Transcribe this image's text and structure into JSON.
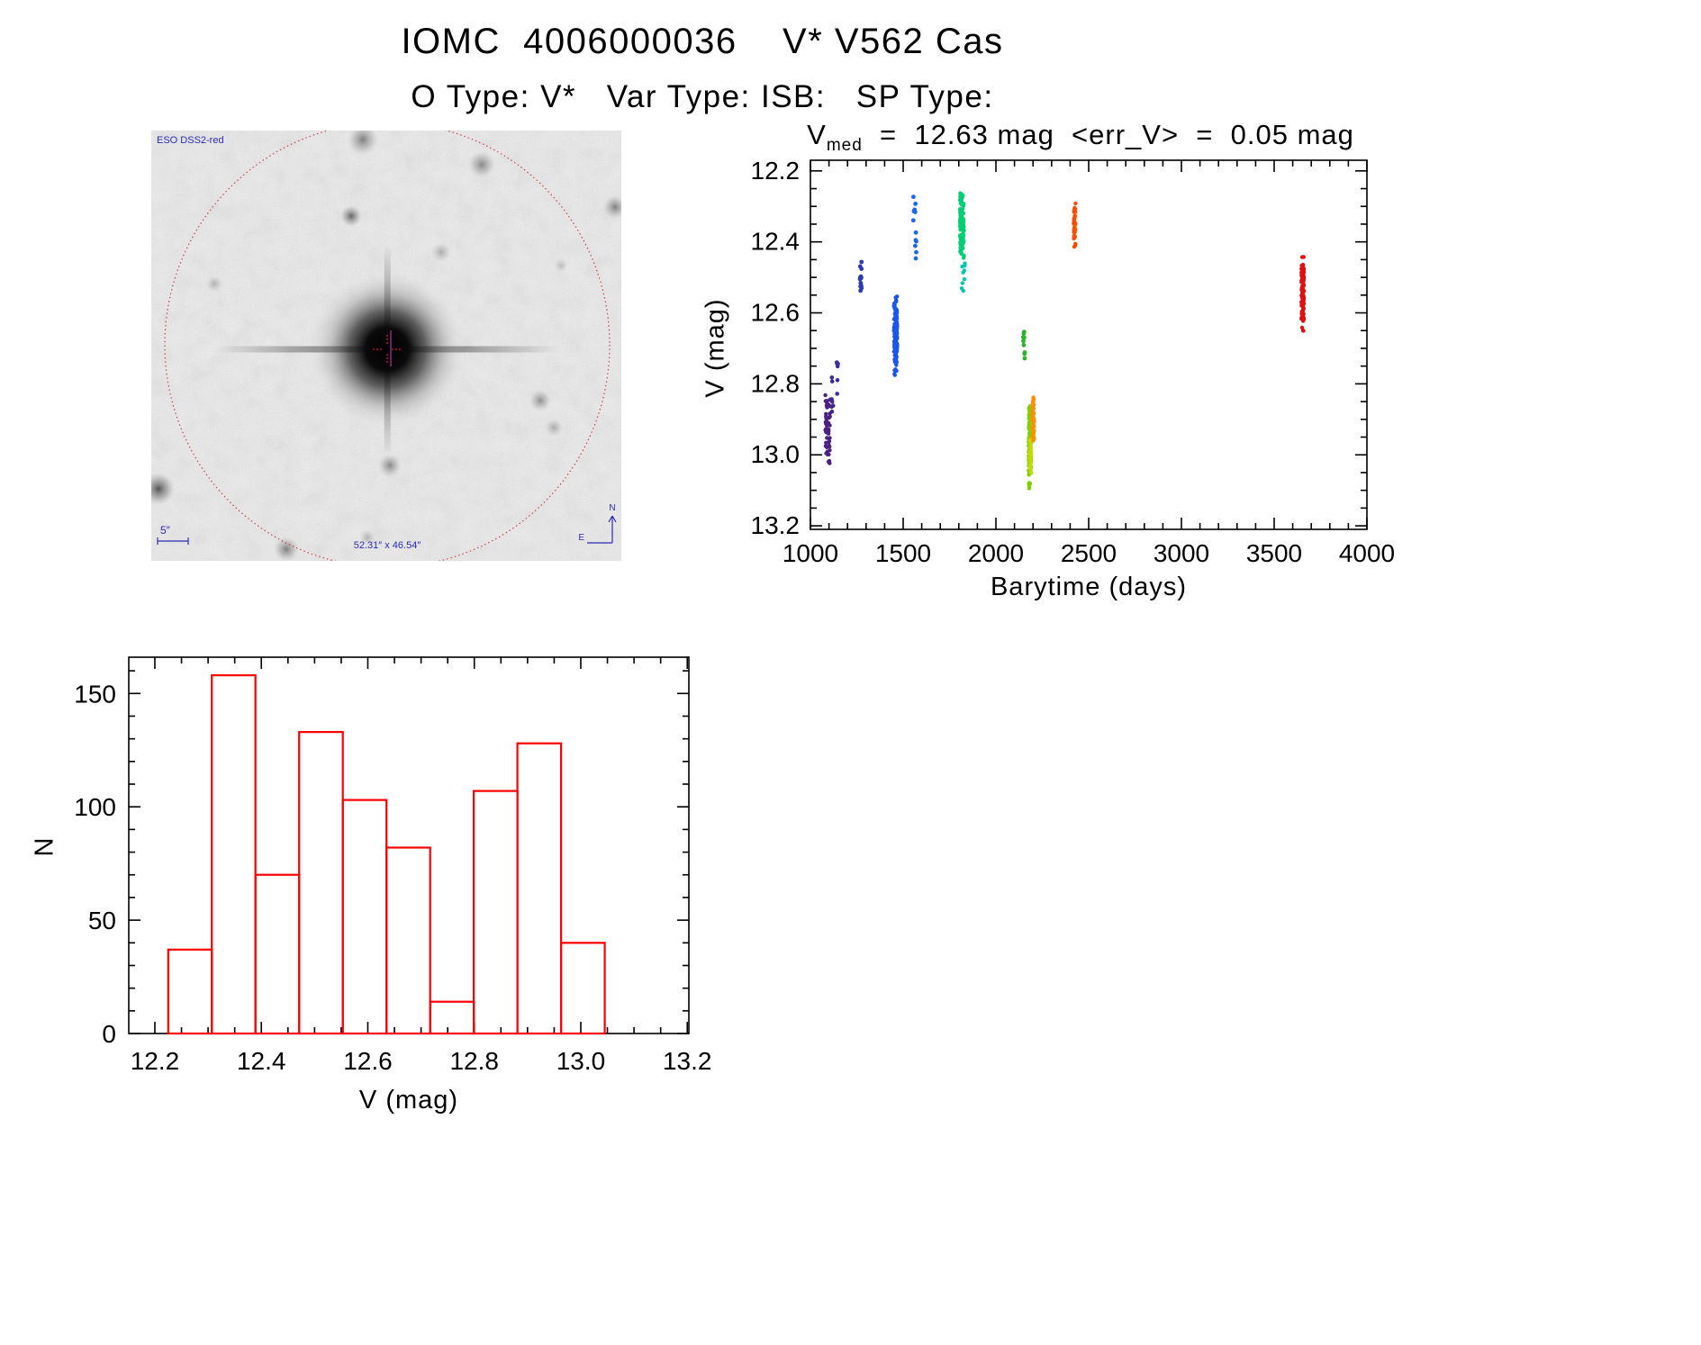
{
  "page": {
    "title": "IOMC  4006000036    V* V562 Cas",
    "subtitle": "O Type: V*   Var Type: ISB:   SP Type:"
  },
  "finding_chart": {
    "survey_label": "ESO DSS2-red",
    "scale_bar_label": "5″",
    "field_size_label": "52.31″ x 46.54″",
    "compass_north_label": "N",
    "compass_east_label": "E",
    "circle_color": "#cc3333",
    "annotation_color": "#2a2ab8"
  },
  "chart_data": [
    {
      "id": "lightcurve",
      "type": "scatter",
      "title": {
        "var": "V",
        "subscript": "med",
        "rest": "  =  12.63 mag  <err_V>  =  0.05 mag"
      },
      "v_med_mag": 12.63,
      "err_v_mag": 0.05,
      "xlabel": "Barytime (days)",
      "ylabel": "V (mag)",
      "xlim": [
        1000,
        4000
      ],
      "ylim_inverted": [
        12.2,
        13.2
      ],
      "y_display_range": [
        12.17,
        13.21
      ],
      "x_ticks": [
        1000,
        1500,
        2000,
        2500,
        3000,
        3500,
        4000
      ],
      "y_ticks": [
        12.2,
        12.4,
        12.6,
        12.8,
        13.0,
        13.2
      ],
      "x_minor_step": 100,
      "y_minor_step": 0.05,
      "grid": false,
      "clusters": [
        {
          "x": 1093,
          "x_spread": 13,
          "v_min": 12.83,
          "v_max": 13.03,
          "n": 55,
          "color": "#4b2080",
          "dot": 2.2
        },
        {
          "x": 1118,
          "x_spread": 5,
          "v_min": 12.78,
          "v_max": 12.88,
          "n": 8,
          "color": "#40288e",
          "dot": 2.3
        },
        {
          "x": 1146,
          "x_spread": 5,
          "v_min": 12.73,
          "v_max": 12.84,
          "n": 7,
          "color": "#37309c",
          "dot": 2.3
        },
        {
          "x": 1272,
          "x_spread": 6,
          "v_min": 12.45,
          "v_max": 12.56,
          "n": 14,
          "color": "#2c3cb0",
          "dot": 2.4
        },
        {
          "x": 1459,
          "x_spread": 9,
          "v_min": 12.54,
          "v_max": 12.8,
          "n": 140,
          "color": "#1a55ee",
          "dot": 2.2
        },
        {
          "x": 1560,
          "x_spread": 6,
          "v_min": 12.27,
          "v_max": 12.34,
          "n": 7,
          "color": "#1b66ee",
          "dot": 2.4
        },
        {
          "x": 1566,
          "x_spread": 5,
          "v_min": 12.37,
          "v_max": 12.45,
          "n": 6,
          "color": "#1b66ee",
          "dot": 2.4
        },
        {
          "x": 1817,
          "x_spread": 11,
          "v_min": 12.24,
          "v_max": 12.46,
          "n": 115,
          "color": "#00cd74",
          "dot": 2.2
        },
        {
          "x": 1824,
          "x_spread": 9,
          "v_min": 12.46,
          "v_max": 12.54,
          "n": 9,
          "color": "#00c4ae",
          "dot": 2.2
        },
        {
          "x": 2152,
          "x_spread": 5,
          "v_min": 12.63,
          "v_max": 12.73,
          "n": 9,
          "color": "#2db22d",
          "dot": 2.4
        },
        {
          "x": 2183,
          "x_spread": 7,
          "v_min": 12.85,
          "v_max": 13.1,
          "n": 125,
          "color": "#80d000",
          "dot": 2.2
        },
        {
          "x": 2186,
          "x_spread": 5,
          "v_min": 12.95,
          "v_max": 13.06,
          "n": 45,
          "color": "#c3da00",
          "dot": 2.0
        },
        {
          "x": 2201,
          "x_spread": 5,
          "v_min": 12.82,
          "v_max": 12.97,
          "n": 60,
          "color": "#ff8f00",
          "dot": 2.2
        },
        {
          "x": 2424,
          "x_spread": 5,
          "v_min": 12.27,
          "v_max": 12.43,
          "n": 45,
          "color": "#ff4d00",
          "dot": 2.2
        },
        {
          "x": 3654,
          "x_spread": 7,
          "v_min": 12.43,
          "v_max": 12.66,
          "n": 110,
          "color": "#e01010",
          "dot": 2.2
        }
      ]
    },
    {
      "id": "histogram",
      "type": "histogram",
      "xlabel": "V (mag)",
      "ylabel": "N",
      "xlim_display": [
        12.151,
        13.203
      ],
      "x_ticks": [
        12.2,
        12.4,
        12.6,
        12.8,
        13.0,
        13.2
      ],
      "y_ticks": [
        0,
        50,
        100,
        150
      ],
      "ylim": [
        0,
        166
      ],
      "x_minor_step": 0.05,
      "y_minor_step": 10,
      "bin_start": 12.225,
      "bin_width": 0.082,
      "counts": [
        37,
        158,
        70,
        133,
        103,
        82,
        14,
        107,
        128,
        40
      ],
      "bar_color": "#ff0000",
      "grid": false
    }
  ]
}
